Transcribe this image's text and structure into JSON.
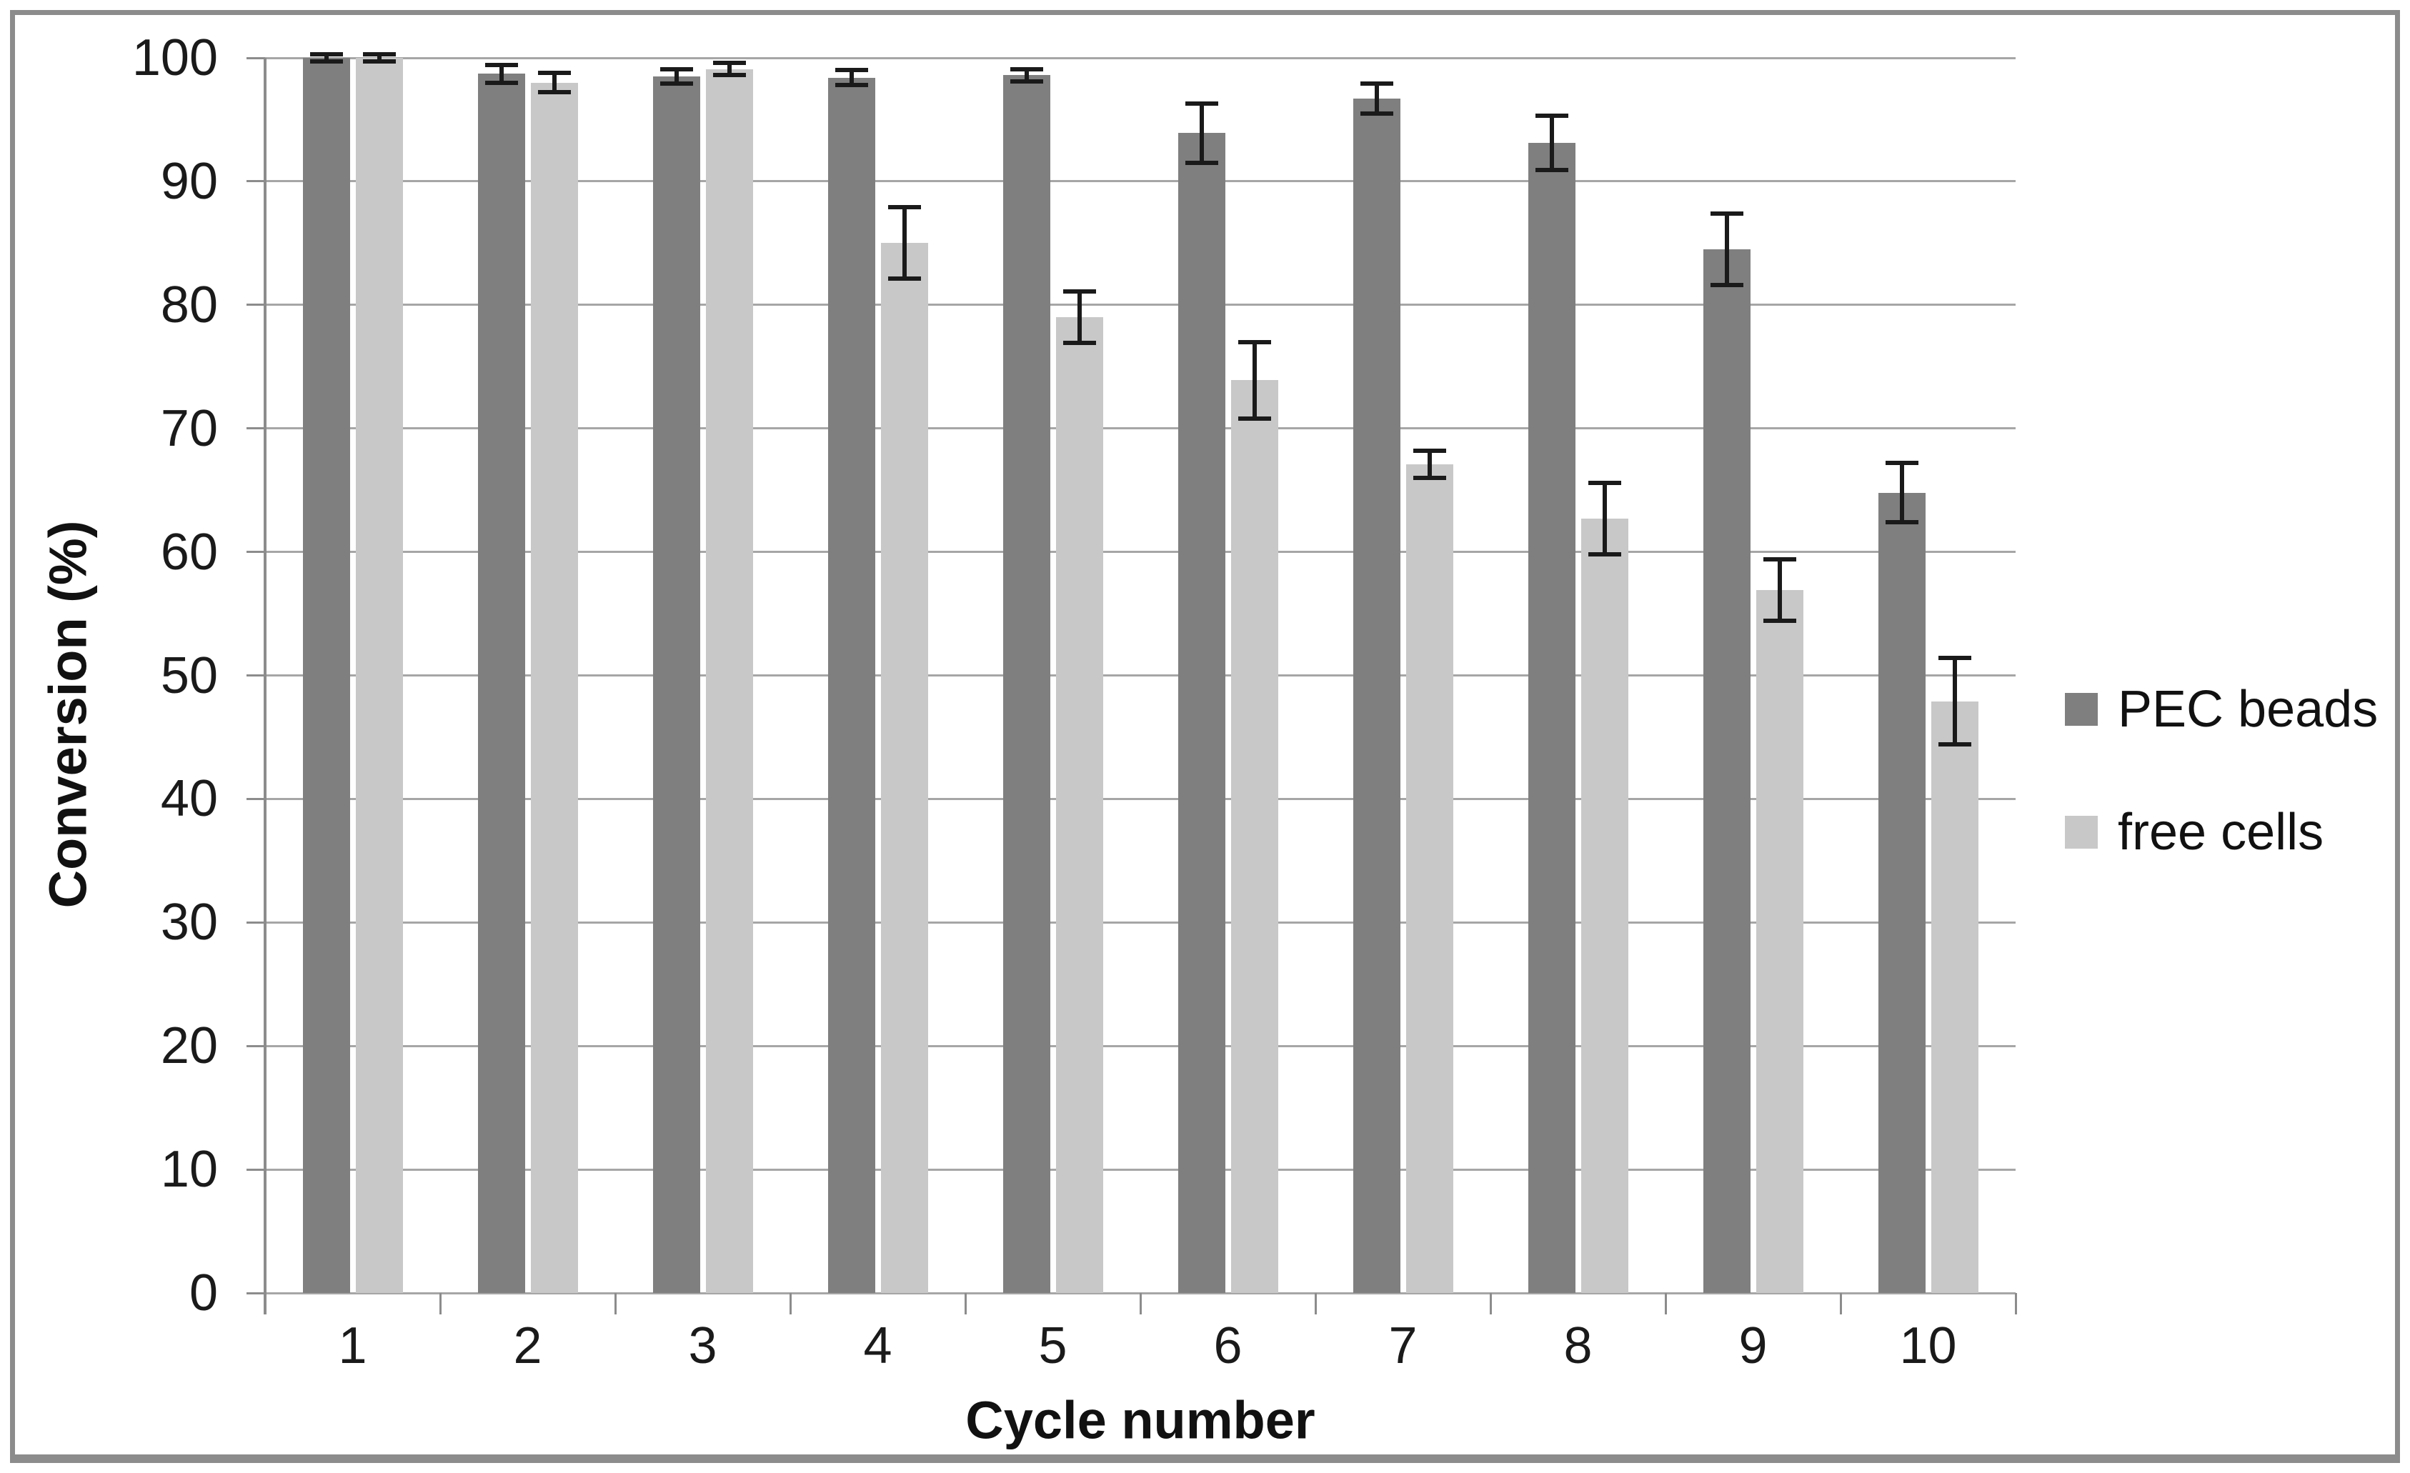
{
  "figure": {
    "background": "#ffffff",
    "border_color": "#8c8c8c"
  },
  "chart_data": {
    "type": "bar",
    "title": "",
    "xlabel": "Cycle number",
    "ylabel": "Conversion (%)",
    "categories": [
      "1",
      "2",
      "3",
      "4",
      "5",
      "6",
      "7",
      "8",
      "9",
      "10"
    ],
    "series": [
      {
        "name": "PEC beads",
        "color": "#7f7f7f",
        "values": [
          100,
          98.7,
          98.5,
          98.4,
          98.6,
          93.9,
          96.7,
          93.1,
          84.5,
          64.8
        ],
        "errors": [
          0.3,
          0.7,
          0.6,
          0.6,
          0.5,
          2.4,
          1.2,
          2.2,
          2.9,
          2.4
        ]
      },
      {
        "name": "free cells",
        "color": "#c8c8c8",
        "values": [
          100,
          98.0,
          99.1,
          85.0,
          79.0,
          73.9,
          67.1,
          62.7,
          56.9,
          47.9
        ],
        "errors": [
          0.3,
          0.8,
          0.5,
          2.9,
          2.1,
          3.1,
          1.1,
          2.9,
          2.5,
          3.5
        ]
      }
    ],
    "ylim": [
      0,
      100
    ],
    "yticks": [
      "0",
      "10",
      "20",
      "30",
      "40",
      "50",
      "60",
      "70",
      "80",
      "90",
      "100"
    ],
    "grid": "horizontal gridlines on",
    "gridline_color": "#a6a6a6",
    "axis_color": "#8c8c8c",
    "error_bar_color": "#1a1a1a",
    "legend_position": "right",
    "legend": [
      "PEC beads",
      "free cells"
    ]
  }
}
